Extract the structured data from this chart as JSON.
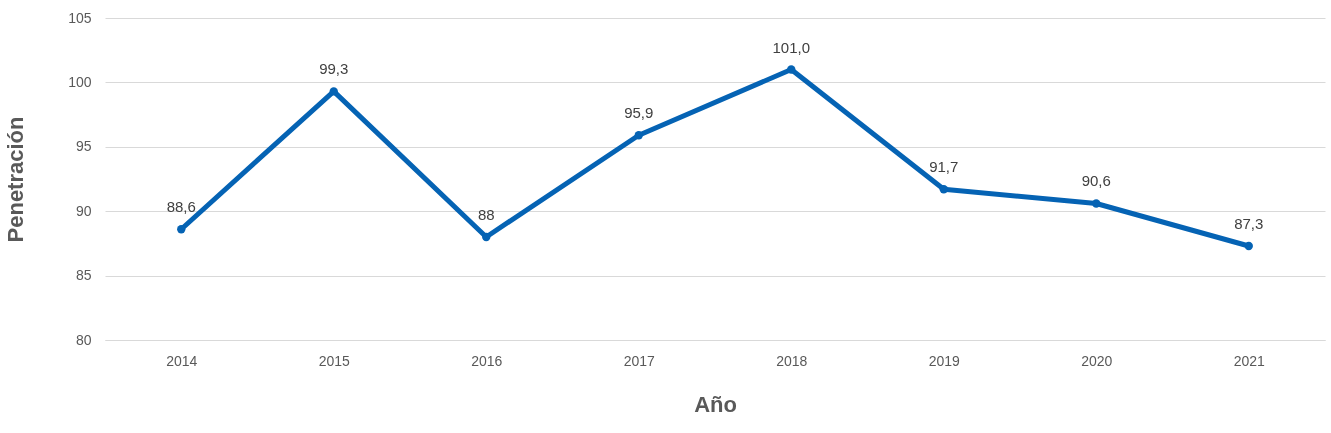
{
  "chart_data": {
    "type": "line",
    "xlabel": "Año",
    "ylabel": "Penetración",
    "categories": [
      "2014",
      "2015",
      "2016",
      "2017",
      "2018",
      "2019",
      "2020",
      "2021"
    ],
    "series": [
      {
        "color": "#0563b4",
        "values": [
          88.6,
          99.3,
          88,
          95.9,
          101.0,
          91.7,
          90.6,
          87.3
        ],
        "value_labels": [
          "88,6",
          "99,3",
          "88",
          "95,9",
          "101,0",
          "91,7",
          "90,6",
          "87,3"
        ]
      }
    ],
    "ylim": [
      80,
      105
    ],
    "yticks": [
      80,
      85,
      90,
      95,
      100,
      105
    ],
    "grid": "y",
    "marker": "circle",
    "line_style": "solid"
  }
}
